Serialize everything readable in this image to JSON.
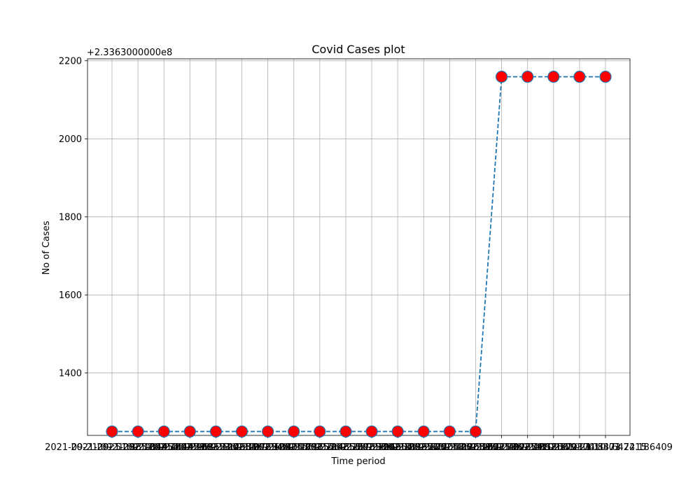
{
  "chart_data": {
    "type": "line",
    "title": "Covid Cases plot",
    "xlabel": "Time period",
    "ylabel": "No of Cases",
    "y_offset_label": "+2.3363000000e8",
    "y_offset": 233630000,
    "ylim": [
      1240,
      2205
    ],
    "yticks": [
      1400,
      1600,
      1800,
      2000,
      2200
    ],
    "grid": true,
    "line_style": "dashed",
    "line_color": "#1f77b4",
    "marker_face_color": "#ff0000",
    "marker_edge_color": "#1f77b4",
    "x": [
      "2021-09-21 09:51:38.084954",
      "2021-09-21 09:52:14.441929",
      "2021-09-21 09:52:44.968121",
      "2021-09-21 09:53:15.512985",
      "2021-09-21 09:53:46.097294",
      "2021-09-21 09:54:16.633047",
      "2021-09-21 09:54:47.173652",
      "2021-09-21 09:55:17.714855",
      "2021-09-21 09:55:48.257098",
      "2021-09-21 09:56:18.796604",
      "2021-09-21 09:56:49.333876",
      "2021-09-21 09:57:19.872047",
      "2021-09-21 09:57:50.413689",
      "2021-09-21 09:58:20.952218",
      "2021-09-21 09:58:51.492374",
      "2021-09-21 09:59:22.031856",
      "2021-09-21 09:59:52.570174",
      "2021-09-21 10:00:23.108473",
      "2021-09-21 10:00:53.647215",
      "2021-09-21 10:01:24.186409"
    ],
    "series": [
      {
        "values": [
          1250,
          1250,
          1250,
          1250,
          1250,
          1250,
          1250,
          1250,
          1250,
          1250,
          1250,
          1250,
          1250,
          1250,
          1250,
          2159,
          2159,
          2159,
          2159,
          2159
        ]
      }
    ]
  }
}
